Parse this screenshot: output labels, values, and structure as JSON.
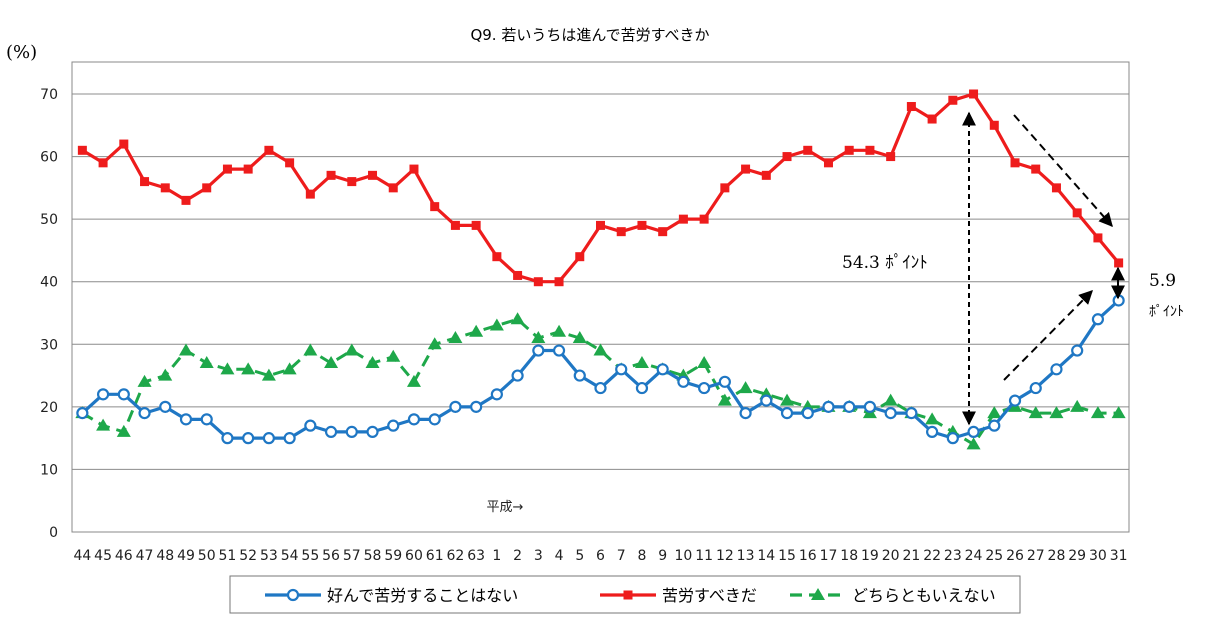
{
  "chart_data": {
    "type": "line",
    "title": "Q9. 若いうちは進んで苦労すべきか",
    "ylabel": "(%)",
    "ylim": [
      0,
      70
    ],
    "yticks": [
      0,
      10,
      20,
      30,
      40,
      50,
      60,
      70
    ],
    "grid": true,
    "legend_position": "bottom",
    "categories": [
      "44",
      "45",
      "46",
      "47",
      "48",
      "49",
      "50",
      "51",
      "52",
      "53",
      "54",
      "55",
      "56",
      "57",
      "58",
      "59",
      "60",
      "61",
      "62",
      "63",
      "1",
      "2",
      "3",
      "4",
      "5",
      "6",
      "7",
      "8",
      "9",
      "10",
      "11",
      "12",
      "13",
      "14",
      "15",
      "16",
      "17",
      "18",
      "19",
      "20",
      "21",
      "22",
      "23",
      "24",
      "25",
      "26",
      "27",
      "28",
      "29",
      "30",
      "31"
    ],
    "era_marker": "平成→",
    "series": [
      {
        "name": "好んで苦労することはない",
        "color": "#1f77c4",
        "marker": "circle",
        "values": [
          19,
          22,
          22,
          19,
          20,
          18,
          18,
          15,
          15,
          15,
          15,
          17,
          16,
          16,
          16,
          17,
          18,
          18,
          20,
          20,
          22,
          25,
          29,
          29,
          25,
          23,
          26,
          23,
          26,
          24,
          23,
          24,
          19,
          21,
          19,
          19,
          20,
          20,
          20,
          19,
          19,
          16,
          15,
          16,
          17,
          21,
          23,
          26,
          29,
          34,
          37
        ]
      },
      {
        "name": "苦労すべきだ",
        "color": "#ee1c1c",
        "marker": "square",
        "values": [
          61,
          59,
          62,
          56,
          55,
          53,
          55,
          58,
          58,
          61,
          59,
          54,
          57,
          56,
          57,
          55,
          58,
          52,
          49,
          49,
          44,
          41,
          40,
          40,
          44,
          49,
          48,
          49,
          48,
          50,
          50,
          55,
          58,
          57,
          60,
          61,
          59,
          61,
          61,
          60,
          68,
          66,
          69,
          70,
          65,
          59,
          58,
          55,
          51,
          47,
          43
        ]
      },
      {
        "name": "どちらともいえない",
        "color": "#1ea84a",
        "marker": "triangle",
        "dashed": true,
        "values": [
          19,
          17,
          16,
          24,
          25,
          29,
          27,
          26,
          26,
          25,
          26,
          29,
          27,
          29,
          27,
          28,
          24,
          30,
          31,
          32,
          33,
          34,
          31,
          32,
          31,
          29,
          26,
          27,
          26,
          25,
          27,
          21,
          23,
          22,
          21,
          20,
          20,
          20,
          19,
          21,
          19,
          18,
          16,
          14,
          19,
          20,
          19,
          19,
          20,
          19,
          19
        ]
      }
    ],
    "annotations": [
      {
        "text": "54.3 ﾎﾟｲﾝﾄ"
      },
      {
        "text": "5.9"
      },
      {
        "text": "ﾎﾟｲﾝﾄ"
      }
    ]
  }
}
